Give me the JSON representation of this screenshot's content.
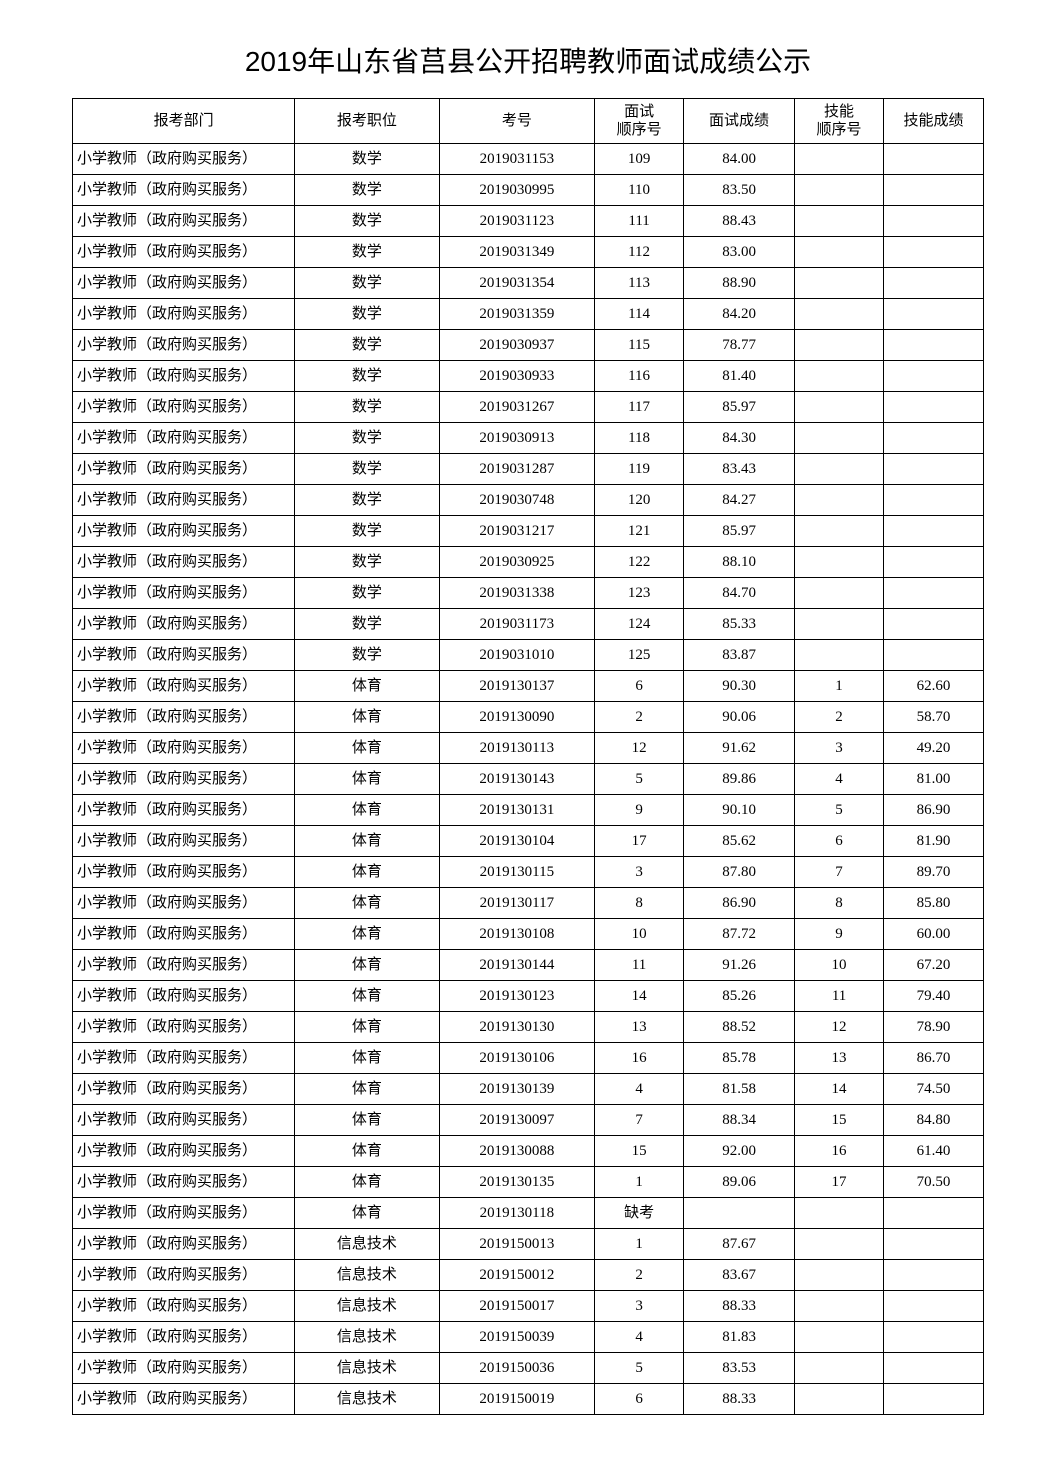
{
  "title": "2019年山东省莒县公开招聘教师面试成绩公示",
  "headers": {
    "dept": "报考部门",
    "position": "报考职位",
    "exam_id": "考号",
    "interview_seq": "面试\n顺序号",
    "interview_score": "面试成绩",
    "skill_seq": "技能\n顺序号",
    "skill_score": "技能成绩"
  },
  "rows": [
    {
      "dept": "小学教师（政府购买服务）",
      "position": "数学",
      "exam_id": "2019031153",
      "interview_seq": "109",
      "interview_score": "84.00",
      "skill_seq": "",
      "skill_score": ""
    },
    {
      "dept": "小学教师（政府购买服务）",
      "position": "数学",
      "exam_id": "2019030995",
      "interview_seq": "110",
      "interview_score": "83.50",
      "skill_seq": "",
      "skill_score": ""
    },
    {
      "dept": "小学教师（政府购买服务）",
      "position": "数学",
      "exam_id": "2019031123",
      "interview_seq": "111",
      "interview_score": "88.43",
      "skill_seq": "",
      "skill_score": ""
    },
    {
      "dept": "小学教师（政府购买服务）",
      "position": "数学",
      "exam_id": "2019031349",
      "interview_seq": "112",
      "interview_score": "83.00",
      "skill_seq": "",
      "skill_score": ""
    },
    {
      "dept": "小学教师（政府购买服务）",
      "position": "数学",
      "exam_id": "2019031354",
      "interview_seq": "113",
      "interview_score": "88.90",
      "skill_seq": "",
      "skill_score": ""
    },
    {
      "dept": "小学教师（政府购买服务）",
      "position": "数学",
      "exam_id": "2019031359",
      "interview_seq": "114",
      "interview_score": "84.20",
      "skill_seq": "",
      "skill_score": ""
    },
    {
      "dept": "小学教师（政府购买服务）",
      "position": "数学",
      "exam_id": "2019030937",
      "interview_seq": "115",
      "interview_score": "78.77",
      "skill_seq": "",
      "skill_score": ""
    },
    {
      "dept": "小学教师（政府购买服务）",
      "position": "数学",
      "exam_id": "2019030933",
      "interview_seq": "116",
      "interview_score": "81.40",
      "skill_seq": "",
      "skill_score": ""
    },
    {
      "dept": "小学教师（政府购买服务）",
      "position": "数学",
      "exam_id": "2019031267",
      "interview_seq": "117",
      "interview_score": "85.97",
      "skill_seq": "",
      "skill_score": ""
    },
    {
      "dept": "小学教师（政府购买服务）",
      "position": "数学",
      "exam_id": "2019030913",
      "interview_seq": "118",
      "interview_score": "84.30",
      "skill_seq": "",
      "skill_score": ""
    },
    {
      "dept": "小学教师（政府购买服务）",
      "position": "数学",
      "exam_id": "2019031287",
      "interview_seq": "119",
      "interview_score": "83.43",
      "skill_seq": "",
      "skill_score": ""
    },
    {
      "dept": "小学教师（政府购买服务）",
      "position": "数学",
      "exam_id": "2019030748",
      "interview_seq": "120",
      "interview_score": "84.27",
      "skill_seq": "",
      "skill_score": ""
    },
    {
      "dept": "小学教师（政府购买服务）",
      "position": "数学",
      "exam_id": "2019031217",
      "interview_seq": "121",
      "interview_score": "85.97",
      "skill_seq": "",
      "skill_score": ""
    },
    {
      "dept": "小学教师（政府购买服务）",
      "position": "数学",
      "exam_id": "2019030925",
      "interview_seq": "122",
      "interview_score": "88.10",
      "skill_seq": "",
      "skill_score": ""
    },
    {
      "dept": "小学教师（政府购买服务）",
      "position": "数学",
      "exam_id": "2019031338",
      "interview_seq": "123",
      "interview_score": "84.70",
      "skill_seq": "",
      "skill_score": ""
    },
    {
      "dept": "小学教师（政府购买服务）",
      "position": "数学",
      "exam_id": "2019031173",
      "interview_seq": "124",
      "interview_score": "85.33",
      "skill_seq": "",
      "skill_score": ""
    },
    {
      "dept": "小学教师（政府购买服务）",
      "position": "数学",
      "exam_id": "2019031010",
      "interview_seq": "125",
      "interview_score": "83.87",
      "skill_seq": "",
      "skill_score": ""
    },
    {
      "dept": "小学教师（政府购买服务）",
      "position": "体育",
      "exam_id": "2019130137",
      "interview_seq": "6",
      "interview_score": "90.30",
      "skill_seq": "1",
      "skill_score": "62.60"
    },
    {
      "dept": "小学教师（政府购买服务）",
      "position": "体育",
      "exam_id": "2019130090",
      "interview_seq": "2",
      "interview_score": "90.06",
      "skill_seq": "2",
      "skill_score": "58.70"
    },
    {
      "dept": "小学教师（政府购买服务）",
      "position": "体育",
      "exam_id": "2019130113",
      "interview_seq": "12",
      "interview_score": "91.62",
      "skill_seq": "3",
      "skill_score": "49.20"
    },
    {
      "dept": "小学教师（政府购买服务）",
      "position": "体育",
      "exam_id": "2019130143",
      "interview_seq": "5",
      "interview_score": "89.86",
      "skill_seq": "4",
      "skill_score": "81.00"
    },
    {
      "dept": "小学教师（政府购买服务）",
      "position": "体育",
      "exam_id": "2019130131",
      "interview_seq": "9",
      "interview_score": "90.10",
      "skill_seq": "5",
      "skill_score": "86.90"
    },
    {
      "dept": "小学教师（政府购买服务）",
      "position": "体育",
      "exam_id": "2019130104",
      "interview_seq": "17",
      "interview_score": "85.62",
      "skill_seq": "6",
      "skill_score": "81.90"
    },
    {
      "dept": "小学教师（政府购买服务）",
      "position": "体育",
      "exam_id": "2019130115",
      "interview_seq": "3",
      "interview_score": "87.80",
      "skill_seq": "7",
      "skill_score": "89.70"
    },
    {
      "dept": "小学教师（政府购买服务）",
      "position": "体育",
      "exam_id": "2019130117",
      "interview_seq": "8",
      "interview_score": "86.90",
      "skill_seq": "8",
      "skill_score": "85.80"
    },
    {
      "dept": "小学教师（政府购买服务）",
      "position": "体育",
      "exam_id": "2019130108",
      "interview_seq": "10",
      "interview_score": "87.72",
      "skill_seq": "9",
      "skill_score": "60.00"
    },
    {
      "dept": "小学教师（政府购买服务）",
      "position": "体育",
      "exam_id": "2019130144",
      "interview_seq": "11",
      "interview_score": "91.26",
      "skill_seq": "10",
      "skill_score": "67.20"
    },
    {
      "dept": "小学教师（政府购买服务）",
      "position": "体育",
      "exam_id": "2019130123",
      "interview_seq": "14",
      "interview_score": "85.26",
      "skill_seq": "11",
      "skill_score": "79.40"
    },
    {
      "dept": "小学教师（政府购买服务）",
      "position": "体育",
      "exam_id": "2019130130",
      "interview_seq": "13",
      "interview_score": "88.52",
      "skill_seq": "12",
      "skill_score": "78.90"
    },
    {
      "dept": "小学教师（政府购买服务）",
      "position": "体育",
      "exam_id": "2019130106",
      "interview_seq": "16",
      "interview_score": "85.78",
      "skill_seq": "13",
      "skill_score": "86.70"
    },
    {
      "dept": "小学教师（政府购买服务）",
      "position": "体育",
      "exam_id": "2019130139",
      "interview_seq": "4",
      "interview_score": "81.58",
      "skill_seq": "14",
      "skill_score": "74.50"
    },
    {
      "dept": "小学教师（政府购买服务）",
      "position": "体育",
      "exam_id": "2019130097",
      "interview_seq": "7",
      "interview_score": "88.34",
      "skill_seq": "15",
      "skill_score": "84.80"
    },
    {
      "dept": "小学教师（政府购买服务）",
      "position": "体育",
      "exam_id": "2019130088",
      "interview_seq": "15",
      "interview_score": "92.00",
      "skill_seq": "16",
      "skill_score": "61.40"
    },
    {
      "dept": "小学教师（政府购买服务）",
      "position": "体育",
      "exam_id": "2019130135",
      "interview_seq": "1",
      "interview_score": "89.06",
      "skill_seq": "17",
      "skill_score": "70.50"
    },
    {
      "dept": "小学教师（政府购买服务）",
      "position": "体育",
      "exam_id": "2019130118",
      "interview_seq": "缺考",
      "interview_score": "",
      "skill_seq": "",
      "skill_score": ""
    },
    {
      "dept": "小学教师（政府购买服务）",
      "position": "信息技术",
      "exam_id": "2019150013",
      "interview_seq": "1",
      "interview_score": "87.67",
      "skill_seq": "",
      "skill_score": ""
    },
    {
      "dept": "小学教师（政府购买服务）",
      "position": "信息技术",
      "exam_id": "2019150012",
      "interview_seq": "2",
      "interview_score": "83.67",
      "skill_seq": "",
      "skill_score": ""
    },
    {
      "dept": "小学教师（政府购买服务）",
      "position": "信息技术",
      "exam_id": "2019150017",
      "interview_seq": "3",
      "interview_score": "88.33",
      "skill_seq": "",
      "skill_score": ""
    },
    {
      "dept": "小学教师（政府购买服务）",
      "position": "信息技术",
      "exam_id": "2019150039",
      "interview_seq": "4",
      "interview_score": "81.83",
      "skill_seq": "",
      "skill_score": ""
    },
    {
      "dept": "小学教师（政府购买服务）",
      "position": "信息技术",
      "exam_id": "2019150036",
      "interview_seq": "5",
      "interview_score": "83.53",
      "skill_seq": "",
      "skill_score": ""
    },
    {
      "dept": "小学教师（政府购买服务）",
      "position": "信息技术",
      "exam_id": "2019150019",
      "interview_seq": "6",
      "interview_score": "88.33",
      "skill_seq": "",
      "skill_score": ""
    }
  ]
}
